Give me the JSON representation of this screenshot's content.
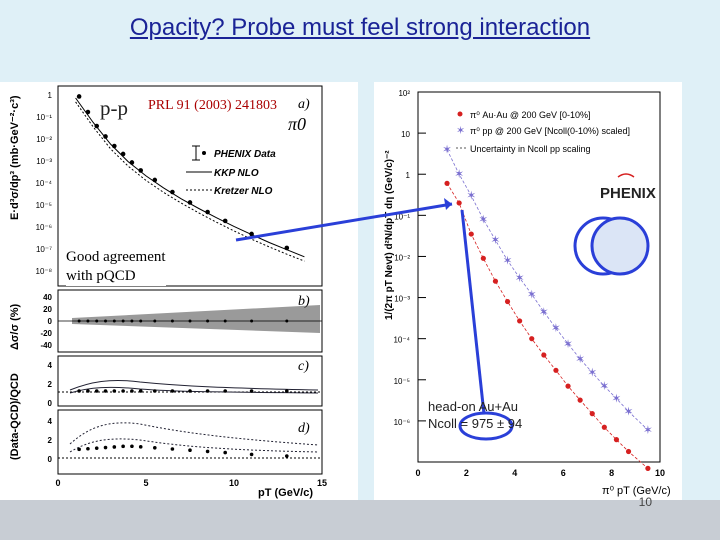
{
  "slide": {
    "title": "Opacity? Probe must feel strong interaction",
    "page_number": "10"
  },
  "left_figure": {
    "process_label": "p-p",
    "reference": "PRL 91 (2003) 241803",
    "particle": "π0",
    "annotation_line1": "Good agreement",
    "annotation_line2": "with pQCD",
    "panel_labels": [
      "a)",
      "b)",
      "c)",
      "d)"
    ],
    "legend": [
      "PHENIX Data",
      "KKP NLO",
      "Kretzer NLO"
    ],
    "y_label_a": "E·d³σ/dp³ (mb·GeV⁻²·c³)",
    "y_label_b": "Δσ/σ (%)",
    "y_label_cd": "(Data-QCD)/QCD",
    "x_label": "pT (GeV/c)",
    "x_ticks": [
      "0",
      "5",
      "10",
      "15"
    ],
    "y_ticks_a": [
      "1",
      "10⁻¹",
      "10⁻²",
      "10⁻³",
      "10⁻⁴",
      "10⁻⁵",
      "10⁻⁶",
      "10⁻⁷",
      "10⁻⁸"
    ],
    "y_ticks_b": [
      "40",
      "20",
      "0",
      "-20",
      "-40"
    ],
    "y_ticks_c": [
      "4",
      "2",
      "0"
    ],
    "y_ticks_d": [
      "4",
      "2",
      "0"
    ]
  },
  "right_figure": {
    "legend": [
      "π⁰ Au·Au @ 200 GeV [0-10%]",
      "π⁰ pp @ 200 GeV [Ncoll(0-10%) scaled]",
      "Uncertainty in Ncoll pp scaling"
    ],
    "logo": "PHENIX",
    "annotation_line1": "head-on Au+Au",
    "annotation_line2": "Ncoll = 975 ± 94",
    "y_label": "1/(2π pT Nevt) d²N/dpT dη (GeV/c)⁻²",
    "x_label": "π⁰ pT (GeV/c)",
    "x_ticks": [
      "0",
      "2",
      "4",
      "6",
      "8",
      "10"
    ],
    "y_ticks": [
      "10²",
      "10",
      "1",
      "10⁻¹",
      "10⁻²",
      "10⁻³",
      "10⁻⁴",
      "10⁻⁵",
      "10⁻⁶"
    ]
  },
  "chart_data": [
    {
      "type": "scatter",
      "title": "",
      "xlabel": "pT (GeV/c)",
      "ylabel": "E·d³σ/dp³ (mb·GeV⁻²·c³)",
      "log_y": true,
      "xlim": [
        0,
        15
      ],
      "ylim": [
        1e-09,
        10
      ],
      "series": [
        {
          "name": "PHENIX Data",
          "x": [
            1.2,
            1.7,
            2.2,
            2.7,
            3.2,
            3.7,
            4.2,
            4.7,
            5.5,
            6.5,
            7.5,
            8.5,
            9.5,
            11,
            13
          ],
          "values": [
            3,
            0.5,
            0.1,
            0.03,
            0.01,
            0.004,
            0.0015,
            0.0006,
            0.0002,
            5e-05,
            1.5e-05,
            5e-06,
            1.8e-06,
            4e-07,
            8e-08
          ]
        },
        {
          "name": "KKP NLO",
          "x": [
            1,
            2,
            3,
            4,
            5,
            6,
            7,
            8,
            9,
            10,
            11,
            12,
            13,
            14
          ],
          "values": [
            2.5,
            0.15,
            0.012,
            0.0016,
            0.00032,
            8e-05,
            2.3e-05,
            7.5e-06,
            2.6e-06,
            9.5e-07,
            3.7e-07,
            1.5e-07,
            6.5e-08,
            2.9e-08
          ]
        },
        {
          "name": "Kretzer NLO",
          "x": [
            1,
            2,
            3,
            4,
            5,
            6,
            7,
            8,
            9,
            10,
            11,
            12,
            13,
            14
          ],
          "values": [
            1.6,
            0.09,
            0.007,
            0.00095,
            0.00019,
            4.8e-05,
            1.4e-05,
            4.5e-06,
            1.55e-06,
            5.7e-07,
            2.2e-07,
            9e-08,
            3.9e-08,
            1.75e-08
          ]
        }
      ]
    },
    {
      "type": "scatter",
      "title": "",
      "xlabel": "π⁰ pT (GeV/c)",
      "ylabel": "1/(2π pT Nevt) d²N/dpT dη (GeV/c)⁻²",
      "log_y": true,
      "xlim": [
        0,
        10
      ],
      "ylim": [
        1e-07,
        100
      ],
      "series": [
        {
          "name": "π⁰ Au·Au @ 200 GeV [0-10%]",
          "x": [
            1.2,
            1.7,
            2.2,
            2.7,
            3.2,
            3.7,
            4.2,
            4.7,
            5.2,
            5.7,
            6.2,
            6.7,
            7.2,
            7.7,
            8.2,
            8.7,
            9.5
          ],
          "values": [
            0.6,
            0.2,
            0.035,
            0.009,
            0.0025,
            0.0008,
            0.00027,
            0.0001,
            4e-05,
            1.7e-05,
            7e-06,
            3.2e-06,
            1.5e-06,
            7e-07,
            3.5e-07,
            1.8e-07,
            7e-08
          ]
        },
        {
          "name": "π⁰ pp @ 200 GeV [Ncoll(0-10%) scaled]",
          "x": [
            1.2,
            1.7,
            2.2,
            2.7,
            3.2,
            3.7,
            4.2,
            4.7,
            5.2,
            5.7,
            6.2,
            6.7,
            7.2,
            7.7,
            8.2,
            8.7,
            9.5
          ],
          "values": [
            4,
            1,
            0.3,
            0.08,
            0.025,
            0.008,
            0.003,
            0.0012,
            0.00045,
            0.00018,
            7.5e-05,
            3.2e-05,
            1.5e-05,
            7e-06,
            3.5e-06,
            1.7e-06,
            6e-07
          ]
        }
      ]
    }
  ],
  "colors": {
    "title": "#1a2396",
    "arrow": "#2a3fd8",
    "auau": "#d62020",
    "pp": "#7a6fd0"
  }
}
